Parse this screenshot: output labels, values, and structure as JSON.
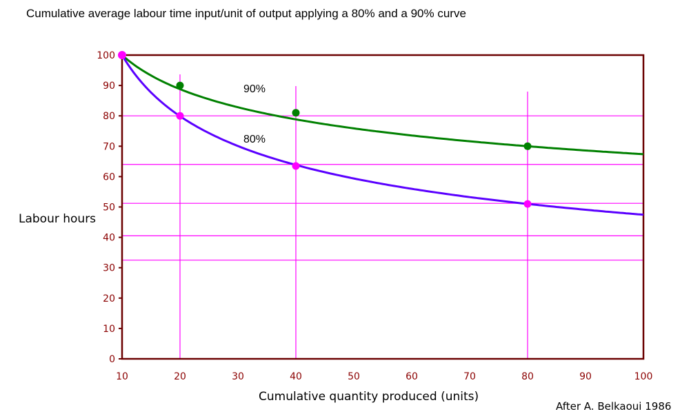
{
  "chart_data": {
    "type": "line",
    "title": "Cumulative average labour time input/unit of output applying a 80% and a 90% curve",
    "xlabel": "Cumulative quantity produced (units)",
    "ylabel": "Labour hours",
    "source": "After A. Belkaoui 1986",
    "xlim": [
      10,
      100
    ],
    "ylim": [
      0,
      100
    ],
    "x_ticks": [
      "10",
      "20",
      "30",
      "40",
      "50",
      "60",
      "70",
      "80",
      "90",
      "100"
    ],
    "y_ticks": [
      "0",
      "10",
      "20",
      "30",
      "40",
      "50",
      "60",
      "70",
      "80",
      "90",
      "100"
    ],
    "grid": "reference lines at marked points",
    "reference_lines": {
      "vertical_x": [
        20,
        40,
        80
      ],
      "horizontal_y": [
        80,
        64,
        51.2,
        40.5,
        32.5
      ]
    },
    "series": [
      {
        "name": "90%",
        "color": "#008000",
        "points": [
          {
            "x": 10,
            "y": 100
          },
          {
            "x": 20,
            "y": 90
          },
          {
            "x": 40,
            "y": 81
          },
          {
            "x": 80,
            "y": 70
          }
        ],
        "curve_end": {
          "x": 100,
          "y": 68
        }
      },
      {
        "name": "80%",
        "color": "#5a00ff",
        "marker_color": "#ff00ff",
        "points": [
          {
            "x": 10,
            "y": 100
          },
          {
            "x": 20,
            "y": 80
          },
          {
            "x": 40,
            "y": 63.5
          },
          {
            "x": 80,
            "y": 51
          }
        ],
        "curve_end": {
          "x": 100,
          "y": 50
        }
      }
    ],
    "colors": {
      "axis_tick_text": "#8b0000",
      "frame": "#6b0000",
      "reference_line": "#ff00ff"
    }
  }
}
